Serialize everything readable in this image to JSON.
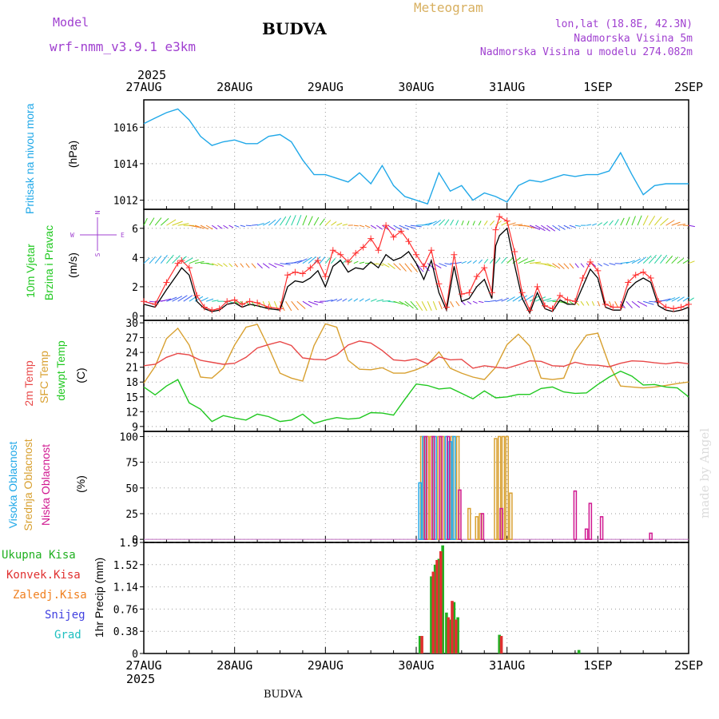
{
  "header": {
    "model_label": "Model",
    "model_name": "wrf-nmm_v3.9.1  e3km",
    "station": "BUDVA",
    "product": "Meteogram",
    "coords": "lon,lat (18.8E, 42.3N)",
    "elevation": "Nadmorska Visina 5m",
    "model_elevation": "Nadmorska Visina u modelu 274.082m"
  },
  "footer": {
    "station": "BUDVA",
    "credit": "made by Angel"
  },
  "time_axis": {
    "year": "2025",
    "ticks": [
      "27AUG",
      "28AUG",
      "29AUG",
      "30AUG",
      "31AUG",
      "1SEP",
      "2SEP"
    ]
  },
  "panels": {
    "pressure": {
      "ylabel": "Pritisak na nivou mora",
      "unit": "(hPa)",
      "ticks": [
        "1012",
        "1014",
        "1016"
      ]
    },
    "wind": {
      "ylabel1": "10m Vjetar",
      "ylabel2": "Brzina i Pravac",
      "unit": "(m/s)",
      "ticks": [
        "0",
        "2",
        "4",
        "6"
      ],
      "compass": {
        "n": "N",
        "w": "W",
        "e": "E",
        "s": "S"
      }
    },
    "temp": {
      "label1": "2m Temp",
      "label2": "SFC Temp",
      "label3": "dewpt Temp",
      "unit": "(C)",
      "ticks": [
        "9",
        "12",
        "15",
        "18",
        "21",
        "24",
        "27",
        "30"
      ]
    },
    "cloud": {
      "label1": "Visoka Oblacnost",
      "label2": "Srednja Oblacnost",
      "label3": "Niska Oblacnost",
      "unit": "(%)",
      "ticks": [
        "0",
        "25",
        "50",
        "75",
        "100"
      ]
    },
    "precip": {
      "labels": [
        "Ukupna Kisa",
        "Konvek.Kisa",
        "Zaledj.Kisa",
        "Snijeg",
        "Grad"
      ],
      "unit": "1hr Precip (mm)",
      "ticks": [
        "0",
        "0.38",
        "0.76",
        "1.14",
        "1.52",
        "1.9"
      ]
    }
  },
  "colors": {
    "pressure": "#20a8e8",
    "t2m": "#e84848",
    "sfc": "#d8a030",
    "dewpt": "#20c820",
    "wind_speed": "#000000",
    "wind_gust": "#ff3030",
    "cloud_high": "#20a8e8",
    "cloud_mid": "#d8a030",
    "cloud_low": "#d01890",
    "rain_total": "#20b020",
    "rain_conv": "#e03030",
    "rain_frz": "#f08020",
    "snow": "#4040e0",
    "hail": "#20c0c0"
  },
  "chart_data": {
    "type": "line",
    "x_unit": "hours since 27AUG 00UTC",
    "x_range": [
      0,
      144
    ],
    "pressure_hPa": {
      "ylim": [
        1011.5,
        1017.5
      ],
      "x": [
        0,
        3,
        6,
        9,
        12,
        15,
        18,
        21,
        24,
        27,
        30,
        33,
        36,
        39,
        42,
        45,
        48,
        51,
        54,
        57,
        60,
        63,
        66,
        69,
        72,
        75,
        78,
        81,
        84,
        87,
        90,
        93,
        96,
        99,
        102,
        105,
        108,
        111,
        114,
        117,
        120,
        123,
        126,
        129,
        132,
        135,
        138,
        141,
        144
      ],
      "y": [
        1016.2,
        1016.5,
        1016.8,
        1017.0,
        1016.4,
        1015.5,
        1015.0,
        1015.2,
        1015.3,
        1015.1,
        1015.1,
        1015.5,
        1015.6,
        1015.2,
        1014.2,
        1013.4,
        1013.4,
        1013.2,
        1013.0,
        1013.5,
        1012.9,
        1013.9,
        1012.8,
        1012.2,
        1012.0,
        1011.8,
        1013.5,
        1012.5,
        1012.8,
        1012.0,
        1012.4,
        1012.2,
        1011.9,
        1012.8,
        1013.1,
        1013.0,
        1013.2,
        1013.4,
        1013.3,
        1013.4,
        1013.4,
        1013.6,
        1014.6,
        1013.4,
        1012.3,
        1012.8,
        1012.9,
        1012.9,
        1012.9
      ]
    },
    "wind_ms": {
      "ylim": [
        -0.3,
        7.3
      ],
      "x": [
        0,
        3,
        6,
        9,
        10,
        12,
        14,
        16,
        18,
        20,
        22,
        24,
        26,
        28,
        30,
        33,
        36,
        38,
        40,
        42,
        44,
        46,
        48,
        50,
        52,
        54,
        56,
        58,
        60,
        62,
        64,
        66,
        68,
        70,
        72,
        74,
        76,
        78,
        80,
        82,
        84,
        86,
        88,
        90,
        92,
        93,
        94,
        96,
        98,
        100,
        102,
        104,
        106,
        108,
        110,
        112,
        114,
        116,
        118,
        120,
        122,
        124,
        126,
        128,
        130,
        132,
        134,
        136,
        138,
        140,
        142,
        144
      ],
      "speed": [
        0.8,
        0.6,
        1.8,
        2.9,
        3.3,
        2.8,
        1.0,
        0.5,
        0.3,
        0.4,
        0.8,
        0.9,
        0.6,
        0.8,
        0.7,
        0.5,
        0.4,
        2.0,
        2.4,
        2.3,
        2.6,
        3.1,
        2.0,
        3.4,
        3.8,
        3.0,
        3.3,
        3.2,
        3.7,
        3.3,
        4.2,
        3.8,
        4.0,
        4.4,
        3.6,
        2.5,
        3.8,
        1.6,
        0.4,
        3.4,
        1.0,
        1.2,
        2.0,
        2.5,
        1.2,
        4.8,
        5.5,
        6.0,
        3.5,
        1.2,
        0.2,
        1.6,
        0.5,
        0.3,
        1.1,
        0.8,
        0.8,
        2.0,
        3.2,
        2.6,
        0.6,
        0.4,
        0.4,
        1.8,
        2.3,
        2.6,
        2.3,
        0.7,
        0.4,
        0.3,
        0.4,
        0.6
      ],
      "gust": [
        1.0,
        0.8,
        2.3,
        3.6,
        3.8,
        3.3,
        1.4,
        0.6,
        0.4,
        0.5,
        1.0,
        1.1,
        0.8,
        1.0,
        0.9,
        0.6,
        0.5,
        2.8,
        3.0,
        2.9,
        3.3,
        3.8,
        2.7,
        4.5,
        4.2,
        3.7,
        4.3,
        4.7,
        5.3,
        4.5,
        6.2,
        5.4,
        5.8,
        5.1,
        4.2,
        3.4,
        4.5,
        2.2,
        0.6,
        4.2,
        1.5,
        1.6,
        2.7,
        3.3,
        1.6,
        5.9,
        6.8,
        6.5,
        4.4,
        1.6,
        0.4,
        2.0,
        0.7,
        0.5,
        1.4,
        1.1,
        1.0,
        2.6,
        3.7,
        3.1,
        0.8,
        0.6,
        0.6,
        2.3,
        2.8,
        3.0,
        2.6,
        1.0,
        0.6,
        0.5,
        0.6,
        0.8
      ]
    },
    "temperature_C": {
      "ylim": [
        8,
        30.5
      ],
      "x": [
        0,
        3,
        6,
        9,
        12,
        15,
        18,
        21,
        24,
        27,
        30,
        33,
        36,
        39,
        42,
        45,
        48,
        51,
        54,
        57,
        60,
        63,
        66,
        69,
        72,
        75,
        78,
        81,
        84,
        87,
        90,
        93,
        96,
        99,
        102,
        105,
        108,
        111,
        114,
        117,
        120,
        123,
        126,
        129,
        132,
        135,
        138,
        141,
        144
      ],
      "t2m": [
        21.3,
        21.6,
        23.0,
        23.8,
        23.5,
        22.4,
        22.0,
        21.6,
        21.8,
        23.0,
        24.9,
        25.6,
        26.2,
        25.4,
        22.9,
        22.6,
        22.5,
        23.5,
        25.5,
        26.3,
        25.9,
        24.4,
        22.5,
        22.3,
        22.7,
        21.7,
        23.1,
        22.5,
        22.6,
        20.8,
        21.3,
        21.0,
        20.8,
        21.5,
        22.3,
        22.2,
        21.3,
        21.2,
        22.0,
        21.5,
        21.4,
        21.1,
        21.8,
        22.3,
        22.2,
        21.9,
        21.7,
        22.0,
        21.7
      ],
      "sfc": [
        17.8,
        21.2,
        26.8,
        28.9,
        25.5,
        19.0,
        18.8,
        20.8,
        25.5,
        29.1,
        29.7,
        25.0,
        19.8,
        18.8,
        18.2,
        25.4,
        29.8,
        29.1,
        22.4,
        20.6,
        20.5,
        20.9,
        19.8,
        19.8,
        20.5,
        21.5,
        24.1,
        20.8,
        19.8,
        19.0,
        18.5,
        21.0,
        25.6,
        27.7,
        25.3,
        18.8,
        18.5,
        18.8,
        24.3,
        27.5,
        27.9,
        21.5,
        17.2,
        17.0,
        16.8,
        17.0,
        17.3,
        17.7,
        18.0
      ],
      "dewpt": [
        17.0,
        15.4,
        17.2,
        18.5,
        13.8,
        12.5,
        10.0,
        11.2,
        10.7,
        10.3,
        11.5,
        11.0,
        10.0,
        10.3,
        11.5,
        9.6,
        10.3,
        10.8,
        10.5,
        10.7,
        11.8,
        11.7,
        11.3,
        14.5,
        17.6,
        17.3,
        16.6,
        16.8,
        15.7,
        14.6,
        16.2,
        14.8,
        15.0,
        15.5,
        15.5,
        16.7,
        17.0,
        16.0,
        15.7,
        15.8,
        17.5,
        19.0,
        20.2,
        19.2,
        17.4,
        17.5,
        17.0,
        16.8,
        15.0
      ]
    },
    "cloud_pct": {
      "ylim": [
        0,
        100
      ],
      "high": [
        {
          "x": 73,
          "v": 55
        },
        {
          "x": 74,
          "v": 100
        },
        {
          "x": 77,
          "v": 100
        },
        {
          "x": 80,
          "v": 100
        },
        {
          "x": 81,
          "v": 95
        },
        {
          "x": 82,
          "v": 100
        }
      ],
      "mid": [
        {
          "x": 73.5,
          "v": 100
        },
        {
          "x": 75,
          "v": 100
        },
        {
          "x": 76,
          "v": 100
        },
        {
          "x": 78,
          "v": 100
        },
        {
          "x": 79,
          "v": 100
        },
        {
          "x": 81.5,
          "v": 100
        },
        {
          "x": 83,
          "v": 100
        },
        {
          "x": 86,
          "v": 30
        },
        {
          "x": 88,
          "v": 22
        },
        {
          "x": 89,
          "v": 25
        },
        {
          "x": 93,
          "v": 98
        },
        {
          "x": 94,
          "v": 100
        },
        {
          "x": 95,
          "v": 100
        },
        {
          "x": 96,
          "v": 100
        },
        {
          "x": 97,
          "v": 45
        }
      ],
      "low": [
        {
          "x": 74.5,
          "v": 100
        },
        {
          "x": 76.5,
          "v": 100
        },
        {
          "x": 78.5,
          "v": 100
        },
        {
          "x": 80.5,
          "v": 100
        },
        {
          "x": 83.5,
          "v": 48
        },
        {
          "x": 89.5,
          "v": 25
        },
        {
          "x": 94.5,
          "v": 30
        },
        {
          "x": 114,
          "v": 47
        },
        {
          "x": 117,
          "v": 10
        },
        {
          "x": 118,
          "v": 35
        },
        {
          "x": 121,
          "v": 22
        },
        {
          "x": 134,
          "v": 6
        }
      ]
    },
    "precip_mm": {
      "ylim": [
        0,
        1.9
      ],
      "total": [
        {
          "x": 73,
          "v": 0.3
        },
        {
          "x": 76,
          "v": 1.32
        },
        {
          "x": 77,
          "v": 1.52
        },
        {
          "x": 78,
          "v": 1.62
        },
        {
          "x": 79,
          "v": 1.85
        },
        {
          "x": 80,
          "v": 0.7
        },
        {
          "x": 81,
          "v": 0.58
        },
        {
          "x": 82,
          "v": 0.88
        },
        {
          "x": 83,
          "v": 0.62
        },
        {
          "x": 94,
          "v": 0.32
        },
        {
          "x": 115,
          "v": 0.06
        }
      ],
      "convective": [
        {
          "x": 73.5,
          "v": 0.3
        },
        {
          "x": 76.5,
          "v": 1.4
        },
        {
          "x": 77.5,
          "v": 1.6
        },
        {
          "x": 78.5,
          "v": 1.75
        },
        {
          "x": 80.5,
          "v": 0.62
        },
        {
          "x": 81.5,
          "v": 0.9
        },
        {
          "x": 82.5,
          "v": 0.58
        },
        {
          "x": 94.5,
          "v": 0.3
        }
      ]
    }
  }
}
